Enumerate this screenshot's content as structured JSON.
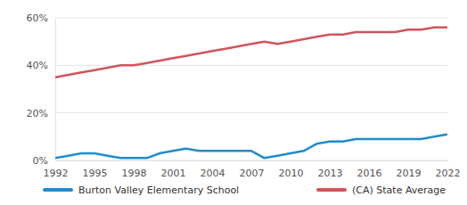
{
  "chart_data": {
    "type": "line",
    "x": [
      1992,
      1993,
      1994,
      1995,
      1996,
      1997,
      1998,
      1999,
      2000,
      2001,
      2002,
      2003,
      2004,
      2005,
      2006,
      2007,
      2008,
      2009,
      2010,
      2011,
      2012,
      2013,
      2014,
      2015,
      2016,
      2017,
      2018,
      2019,
      2020,
      2021,
      2022
    ],
    "series": [
      {
        "name": "Burton Valley Elementary School",
        "color": "#1f8dcb",
        "values": [
          1,
          2,
          3,
          3,
          2,
          1,
          1,
          1,
          3,
          4,
          5,
          4,
          4,
          4,
          4,
          4,
          1,
          2,
          3,
          4,
          7,
          8,
          8,
          9,
          9,
          9,
          9,
          9,
          9,
          10,
          11
        ]
      },
      {
        "name": "(CA) State Average",
        "color": "#d1555b",
        "values": [
          35,
          36,
          37,
          38,
          39,
          40,
          40,
          41,
          42,
          43,
          44,
          45,
          46,
          47,
          48,
          49,
          50,
          49,
          50,
          51,
          52,
          53,
          53,
          54,
          54,
          54,
          54,
          55,
          55,
          56,
          56
        ]
      }
    ],
    "xlim": [
      1992,
      2022
    ],
    "xticks": [
      1992,
      1995,
      1998,
      2001,
      2004,
      2007,
      2010,
      2013,
      2016,
      2019,
      2022
    ],
    "ylim": [
      0,
      60
    ],
    "yticks": [
      {
        "value": 0,
        "label": "0%"
      },
      {
        "value": 20,
        "label": "20%"
      },
      {
        "value": 40,
        "label": "40%"
      },
      {
        "value": 60,
        "label": "60%"
      }
    ],
    "grid": true,
    "legend": "bottom"
  }
}
